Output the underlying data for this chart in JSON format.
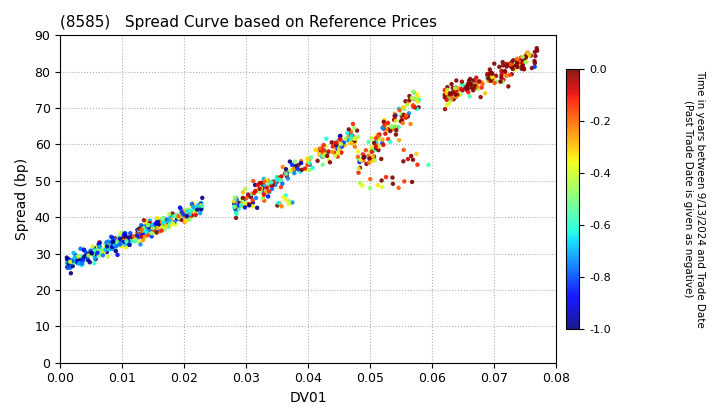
{
  "title": "(8585)   Spread Curve based on Reference Prices",
  "xlabel": "DV01",
  "ylabel": "Spread (bp)",
  "xlim": [
    0.0,
    0.08
  ],
  "ylim": [
    0,
    90
  ],
  "xticks": [
    0.0,
    0.01,
    0.02,
    0.03,
    0.04,
    0.05,
    0.06,
    0.07,
    0.08
  ],
  "yticks": [
    0,
    10,
    20,
    30,
    40,
    50,
    60,
    70,
    80,
    90
  ],
  "colorbar_label": "Time in years between 9/13/2024 and Trade Date\n(Past Trade Date is given as negative)",
  "colorbar_ticks": [
    0.0,
    -0.2,
    -0.4,
    -0.6,
    -0.8,
    -1.0
  ],
  "cmap": "jet",
  "vmin": -1.0,
  "vmax": 0.0,
  "background_color": "#ffffff",
  "grid_color": "#b0b0b0",
  "marker_size": 10
}
